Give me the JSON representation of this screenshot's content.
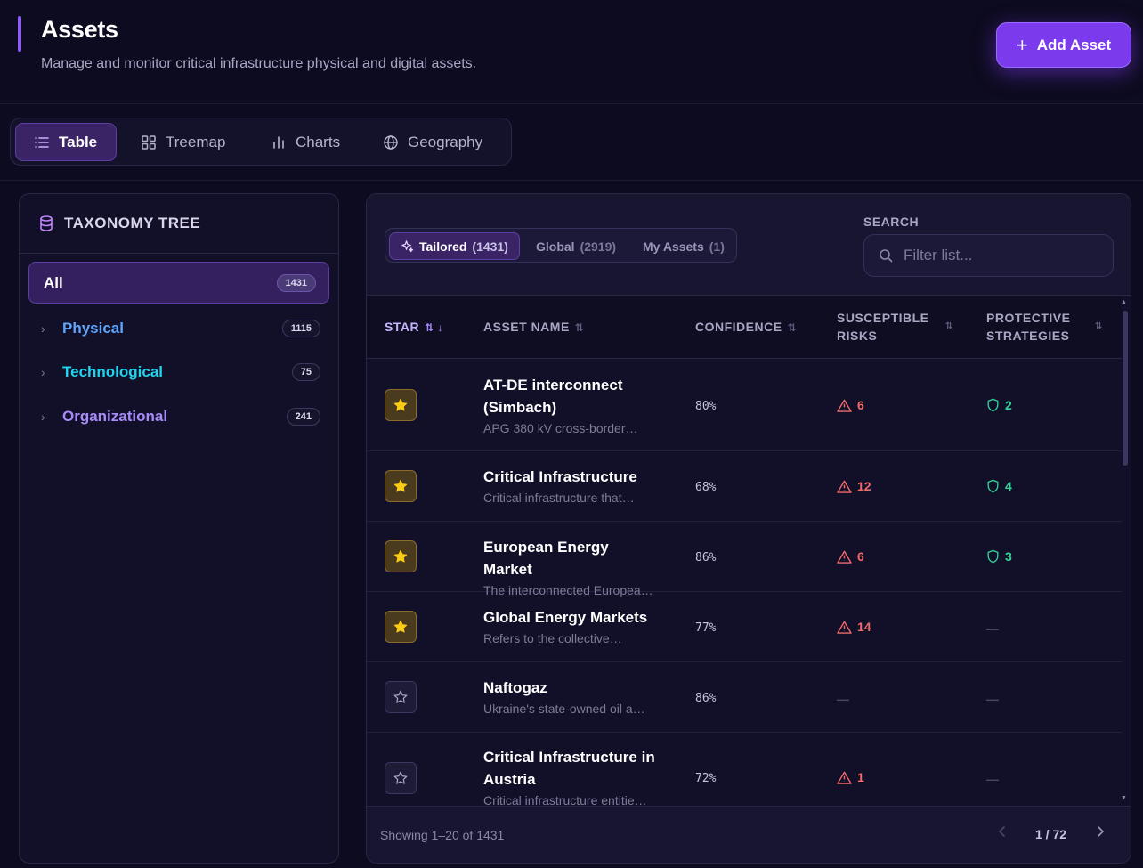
{
  "header": {
    "title": "Assets",
    "subtitle": "Manage and monitor critical infrastructure physical and digital assets.",
    "add_button": "Add Asset"
  },
  "view_tabs": [
    {
      "label": "Table",
      "icon": "list-icon",
      "active": true
    },
    {
      "label": "Treemap",
      "icon": "grid-icon"
    },
    {
      "label": "Charts",
      "icon": "bar-chart-icon"
    },
    {
      "label": "Geography",
      "icon": "globe-icon"
    }
  ],
  "tree": {
    "title": "TAXONOMY TREE",
    "all": {
      "label": "All",
      "count": "1431"
    },
    "items": [
      {
        "label": "Physical",
        "count": "1115",
        "color": "#60a5fa"
      },
      {
        "label": "Technological",
        "count": "75",
        "color": "#22d3ee"
      },
      {
        "label": "Organizational",
        "count": "241",
        "color": "#a78bfa"
      }
    ]
  },
  "filters": [
    {
      "label": "Tailored",
      "count": "(1431)",
      "active": true
    },
    {
      "label": "Global",
      "count": "(2919)"
    },
    {
      "label": "My Assets",
      "count": "(1)"
    }
  ],
  "search": {
    "label": "SEARCH",
    "placeholder": "Filter list..."
  },
  "columns": {
    "star": "STAR",
    "name": "ASSET NAME",
    "confidence": "CONFIDENCE",
    "risks_1": "SUSCEPTIBLE",
    "risks_2": "RISKS",
    "strategies_1": "PROTECTIVE",
    "strategies_2": "STRATEGIES"
  },
  "rows": [
    {
      "starred": true,
      "name": "AT-DE interconnect (Simbach)",
      "desc": "APG 380 kV cross-border…",
      "confidence": "80%",
      "risks": "6",
      "strategies": "2"
    },
    {
      "starred": true,
      "name": "Critical Infrastructure",
      "desc": "Critical infrastructure that…",
      "confidence": "68%",
      "risks": "12",
      "strategies": "4"
    },
    {
      "starred": true,
      "name": "European Energy Market",
      "desc": "The interconnected Europea…",
      "confidence": "86%",
      "risks": "6",
      "strategies": "3"
    },
    {
      "starred": true,
      "name": "Global Energy Markets",
      "desc": "Refers to the collective…",
      "confidence": "77%",
      "risks": "14",
      "strategies": "—"
    },
    {
      "starred": false,
      "name": "Naftogaz",
      "desc": "Ukraine's state-owned oil a…",
      "confidence": "86%",
      "risks": "—",
      "strategies": "—"
    },
    {
      "starred": false,
      "name": "Critical Infrastructure in Austria",
      "desc": "Critical infrastructure entitie…",
      "confidence": "72%",
      "risks": "1",
      "strategies": "—"
    }
  ],
  "footer": {
    "showing": "Showing 1–20 of 1431",
    "page": "1 / 72"
  }
}
